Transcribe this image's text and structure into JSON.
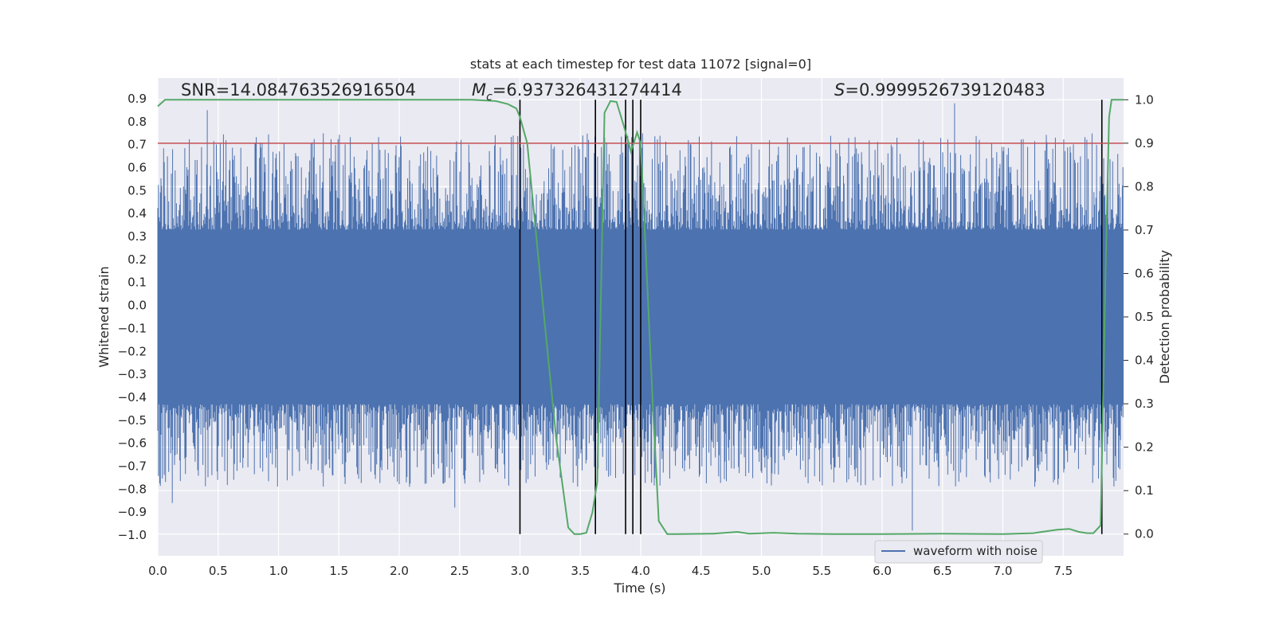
{
  "chart_data": {
    "type": "line",
    "title": "stats at each timestep for test data 11072 [signal=0]",
    "xlabel": "Time (s)",
    "ylabel_left": "Whitened strain",
    "ylabel_right": "Detection probability",
    "xlim": [
      0.0,
      8.0
    ],
    "ylim_left": [
      -1.09,
      0.99
    ],
    "ylim_right": [
      -0.05,
      1.05
    ],
    "x_ticks": [
      "0.0",
      "0.5",
      "1.0",
      "1.5",
      "2.0",
      "2.5",
      "3.0",
      "3.5",
      "4.0",
      "4.5",
      "5.0",
      "5.5",
      "6.0",
      "6.5",
      "7.0",
      "7.5"
    ],
    "x_tick_values": [
      0.0,
      0.5,
      1.0,
      1.5,
      2.0,
      2.5,
      3.0,
      3.5,
      4.0,
      4.5,
      5.0,
      5.5,
      6.0,
      6.5,
      7.0,
      7.5
    ],
    "y_left_ticks": [
      "0.9",
      "0.8",
      "0.7",
      "0.6",
      "0.5",
      "0.4",
      "0.3",
      "0.2",
      "0.1",
      "0.0",
      "−0.1",
      "−0.2",
      "−0.3",
      "−0.4",
      "−0.5",
      "−0.6",
      "−0.7",
      "−0.8",
      "−0.9",
      "−1.0"
    ],
    "y_left_tick_values": [
      0.9,
      0.8,
      0.7,
      0.6,
      0.5,
      0.4,
      0.3,
      0.2,
      0.1,
      0.0,
      -0.1,
      -0.2,
      -0.3,
      -0.4,
      -0.5,
      -0.6,
      -0.7,
      -0.8,
      -0.9,
      -1.0
    ],
    "y_right_ticks": [
      "1.0",
      "0.9",
      "0.8",
      "0.7",
      "0.6",
      "0.5",
      "0.4",
      "0.3",
      "0.2",
      "0.1",
      "0.0"
    ],
    "y_right_tick_values": [
      1.0,
      0.9,
      0.8,
      0.7,
      0.6,
      0.5,
      0.4,
      0.3,
      0.2,
      0.1,
      0.0
    ],
    "annotations": {
      "snr": "SNR=14.084763526916504",
      "mc_symbol": "M",
      "mc_sub": "c",
      "mc_value": "=6.937326431274414",
      "s_symbol": "S",
      "s_value": "=0.9999526739120483"
    },
    "threshold": {
      "value_right_axis": 0.9,
      "color": "#c44e52"
    },
    "vertical_lines_x": [
      3.0,
      3.625,
      3.875,
      3.935,
      4.0,
      7.82
    ],
    "waveform": {
      "name": "waveform with noise",
      "color": "#4c72b0",
      "band_envelope": [
        0.33,
        -0.43
      ],
      "notable_spikes": [
        [
          0.41,
          0.85
        ],
        [
          6.6,
          0.88
        ],
        [
          6.25,
          -0.98
        ],
        [
          2.46,
          -0.88
        ],
        [
          0.12,
          -0.86
        ]
      ]
    },
    "probability": {
      "color": "#55a868",
      "x": [
        0.0,
        0.06,
        0.2,
        1.0,
        2.0,
        2.6,
        2.8,
        2.9,
        2.97,
        3.0,
        3.06,
        3.13,
        3.2,
        3.3,
        3.4,
        3.45,
        3.5,
        3.55,
        3.6,
        3.64,
        3.7,
        3.75,
        3.8,
        3.86,
        3.92,
        3.97,
        4.0,
        4.05,
        4.1,
        4.15,
        4.22,
        4.3,
        4.6,
        4.8,
        4.9,
        5.1,
        5.3,
        5.6,
        6.0,
        6.5,
        7.0,
        7.25,
        7.3,
        7.45,
        7.55,
        7.63,
        7.7,
        7.75,
        7.81,
        7.85,
        7.88,
        7.9,
        8.0
      ],
      "y": [
        0.985,
        1.0,
        1.0,
        1.0,
        1.0,
        1.0,
        0.997,
        0.99,
        0.98,
        0.96,
        0.9,
        0.7,
        0.5,
        0.22,
        0.015,
        0.0,
        0.0,
        0.003,
        0.05,
        0.12,
        0.97,
        0.997,
        0.995,
        0.94,
        0.88,
        0.925,
        0.9,
        0.6,
        0.3,
        0.03,
        0.0,
        0.0,
        0.001,
        0.005,
        0.001,
        0.003,
        0.001,
        0.0,
        0.0,
        0.001,
        0.0,
        0.002,
        0.004,
        0.01,
        0.012,
        0.005,
        0.002,
        0.002,
        0.02,
        0.6,
        0.96,
        1.0,
        1.0
      ]
    },
    "legend": {
      "placement": "bottom-right",
      "entries": [
        "waveform with noise"
      ]
    },
    "grid": true,
    "plot_background": "#eaeaf2"
  }
}
